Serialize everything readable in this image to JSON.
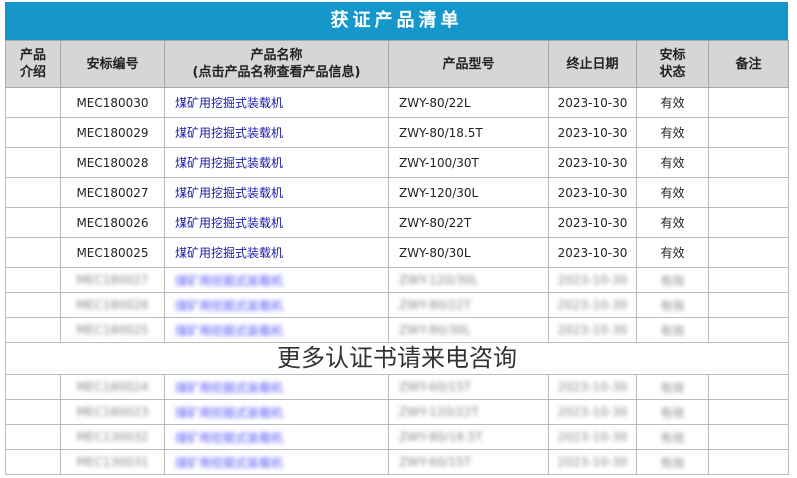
{
  "title": "获证产品清单",
  "headers": [
    "产品介绍",
    "安标编号",
    "产品名称",
    "(点击产品名称查看产品信息)",
    "产品型号",
    "终止日期",
    "安标状态",
    "备注"
  ],
  "rows": [
    {
      "id": "MEC180030",
      "name": "煤矿用挖掘式装载机",
      "model": "ZWY-80/22L",
      "date": "2023-10-30",
      "status": "有效"
    },
    {
      "id": "MEC180029",
      "name": "煤矿用挖掘式装载机",
      "model": "ZWY-80/18.5T",
      "date": "2023-10-30",
      "status": "有效"
    },
    {
      "id": "MEC180028",
      "name": "煤矿用挖掘式装载机",
      "model": "ZWY-100/30T",
      "date": "2023-10-30",
      "status": "有效"
    },
    {
      "id": "MEC180027",
      "name": "煤矿用挖掘式装载机",
      "model": "ZWY-120/30L",
      "date": "2023-10-30",
      "status": "有效"
    },
    {
      "id": "MEC180026",
      "name": "煤矿用挖掘式装载机",
      "model": "ZWY-80/22T",
      "date": "2023-10-30",
      "status": "有效"
    },
    {
      "id": "MEC180025",
      "name": "煤矿用挖掘式装载机",
      "model": "ZWY-80/30L",
      "date": "2023-10-30",
      "status": "有效"
    }
  ],
  "blurred_rows": [
    {
      "id": "MEC180027",
      "name": "煤矿用挖掘式装载机",
      "model": "ZWY-120/30L",
      "date": "2023-10-30",
      "status": "有效"
    },
    {
      "id": "MEC180026",
      "name": "煤矿用挖掘式装载机",
      "model": "ZWY-80/22T",
      "date": "2023-10-30",
      "status": "有效"
    },
    {
      "id": "MEC180025",
      "name": "煤矿用挖掘式装载机",
      "model": "ZWY-80/30L",
      "date": "2023-10-30",
      "status": "有效"
    },
    {
      "id": "MEC180024",
      "name": "煤矿用挖掘式装载机",
      "model": "ZWY-60/15T",
      "date": "2023-10-30",
      "status": "有效"
    },
    {
      "id": "MEC180023",
      "name": "煤矿用挖掘式装载机",
      "model": "ZWY-120/22T",
      "date": "2023-10-30",
      "status": "有效"
    },
    {
      "id": "MEC130032",
      "name": "煤矿用挖掘式装载机",
      "model": "ZWY-80/18.5T",
      "date": "2023-10-30",
      "status": "有效"
    },
    {
      "id": "MEC130031",
      "name": "煤矿用挖掘式装载机",
      "model": "ZWY-60/15T",
      "date": "2023-10-30",
      "status": "有效"
    }
  ],
  "overlay": "更多认证书请来电咨询",
  "colors": {
    "title_bg": "#1597cc",
    "link": "#1a1aa8"
  }
}
